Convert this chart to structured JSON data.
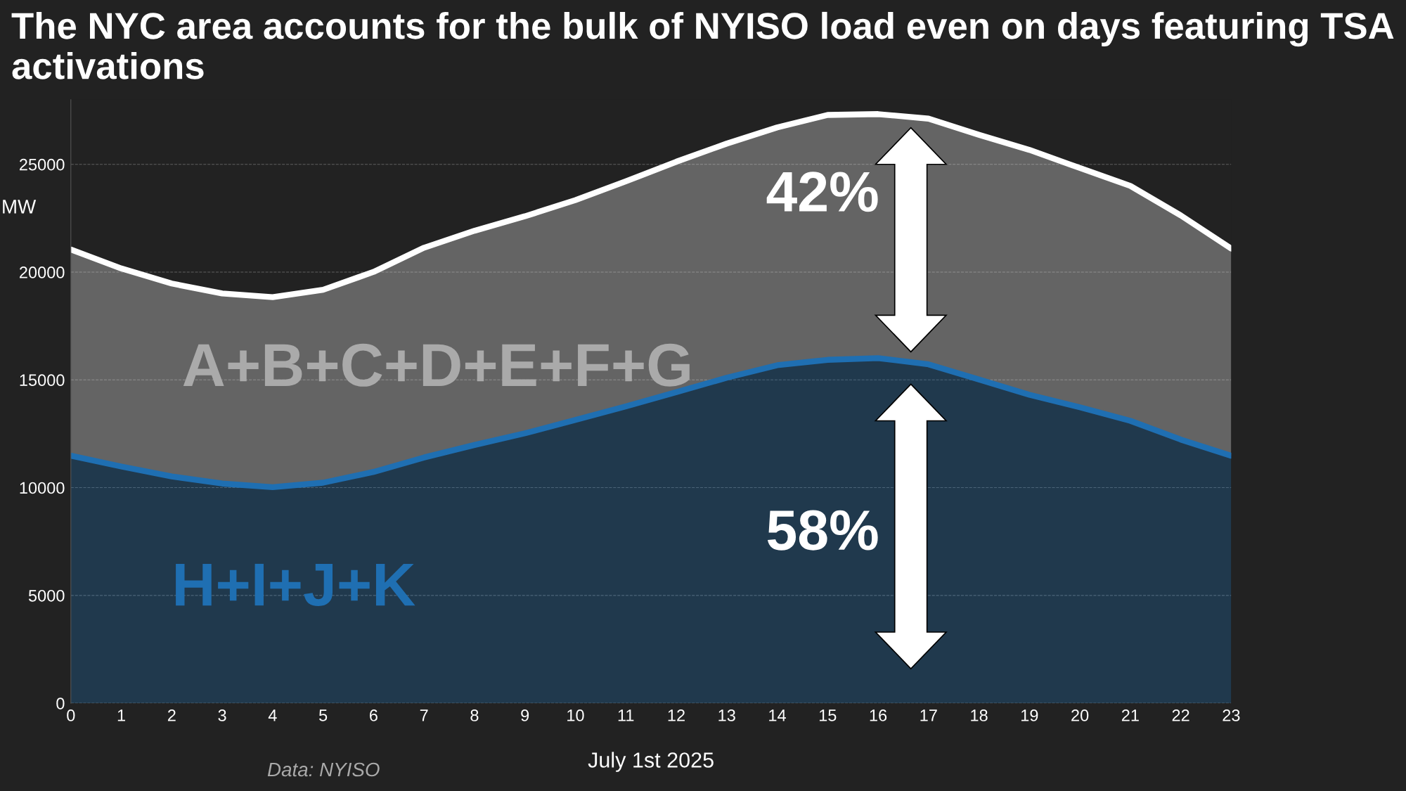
{
  "chart_data": {
    "type": "area",
    "stacked": true,
    "title": "The NYC area accounts for the bulk of NYISO load even on days featuring TSA activations",
    "xlabel": "July 1st 2025",
    "ylabel": "MW",
    "x": [
      0,
      1,
      2,
      3,
      4,
      5,
      6,
      7,
      8,
      9,
      10,
      11,
      12,
      13,
      14,
      15,
      16,
      17,
      18,
      19,
      20,
      21,
      22,
      23
    ],
    "series": [
      {
        "name": "H+I+J+K",
        "color": "#1f6fb2",
        "values": [
          11480,
          10980,
          10520,
          10190,
          10020,
          10230,
          10730,
          11400,
          11980,
          12520,
          13140,
          13770,
          14430,
          15100,
          15680,
          15930,
          16010,
          15720,
          15020,
          14310,
          13730,
          13100,
          12230,
          11480
        ]
      },
      {
        "name": "A+B+C+D+E+F+G",
        "color": "#ffffff",
        "values": [
          9570,
          9190,
          8950,
          8820,
          8820,
          8950,
          9280,
          9730,
          9940,
          10070,
          10200,
          10440,
          10690,
          10860,
          11030,
          11360,
          11320,
          11400,
          11350,
          11360,
          11100,
          10900,
          10400,
          9610
        ]
      }
    ],
    "xlim": [
      0,
      23
    ],
    "xticks": [
      0,
      1,
      2,
      3,
      4,
      5,
      6,
      7,
      8,
      9,
      10,
      11,
      12,
      13,
      14,
      15,
      16,
      17,
      18,
      19,
      20,
      21,
      22,
      23
    ],
    "ylim": [
      0,
      28000
    ],
    "yticks": [
      0,
      5000,
      10000,
      15000,
      20000,
      25000
    ],
    "grid": "y",
    "annotations": [
      "42%",
      "58%",
      "Data: NYISO"
    ]
  }
}
